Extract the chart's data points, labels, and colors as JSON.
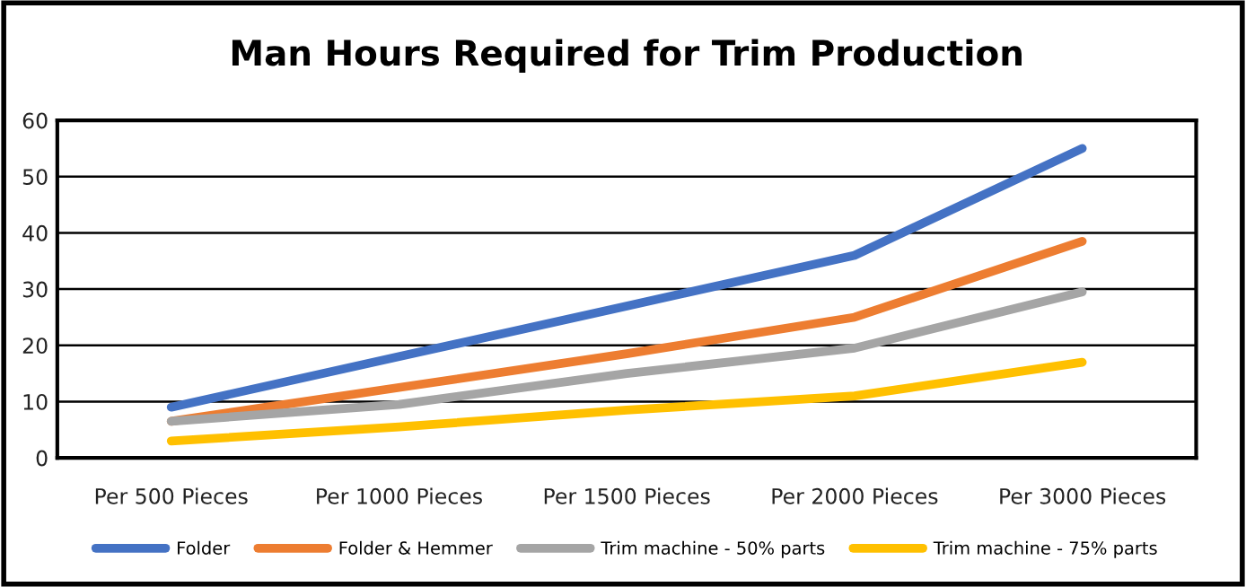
{
  "chart_data": {
    "type": "line",
    "title": "Man Hours Required for Trim Production",
    "categories": [
      "Per 500 Pieces",
      "Per 1000 Pieces",
      "Per 1500 Pieces",
      "Per 2000 Pieces",
      "Per 3000 Pieces"
    ],
    "series": [
      {
        "name": "Folder",
        "color": "#4472c4",
        "values": [
          9,
          18,
          27,
          36,
          55
        ]
      },
      {
        "name": "Folder & Hemmer",
        "color": "#ed7d31",
        "values": [
          6.5,
          12.5,
          18.5,
          25,
          38.5
        ]
      },
      {
        "name": "Trim machine - 50% parts",
        "color": "#a5a5a5",
        "values": [
          6.5,
          9.5,
          15,
          19.5,
          29.5
        ]
      },
      {
        "name": "Trim machine - 75% parts",
        "color": "#ffc000",
        "values": [
          3,
          5.5,
          8.5,
          11,
          17
        ]
      }
    ],
    "ylim": [
      0,
      60
    ],
    "yticks": [
      0,
      10,
      20,
      30,
      40,
      50,
      60
    ],
    "grid": "y",
    "legend": "bottom",
    "marker": "none",
    "line_style": "solid"
  }
}
